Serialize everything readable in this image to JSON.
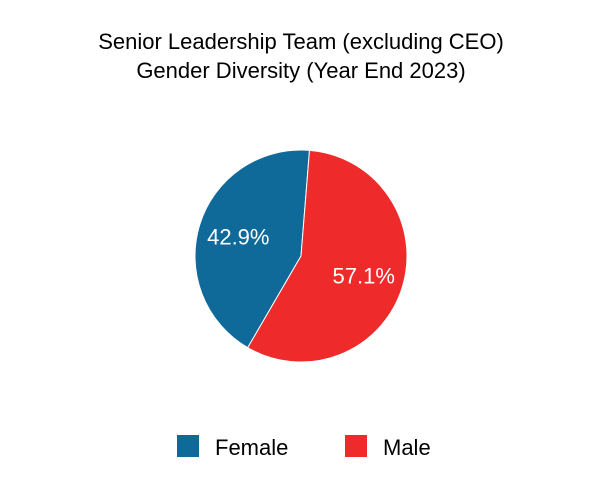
{
  "chart_data": {
    "type": "pie",
    "title_lines": [
      "Senior Leadership Team  (excluding CEO)",
      "Gender  Diversity (Year End 2023)"
    ],
    "categories": [
      "Female",
      "Male"
    ],
    "values": [
      42.9,
      57.1
    ],
    "labels": [
      "42.9%",
      "57.1%"
    ],
    "colors": [
      "#0f6a9a",
      "#ee2a2a"
    ],
    "legend_position": "bottom"
  }
}
